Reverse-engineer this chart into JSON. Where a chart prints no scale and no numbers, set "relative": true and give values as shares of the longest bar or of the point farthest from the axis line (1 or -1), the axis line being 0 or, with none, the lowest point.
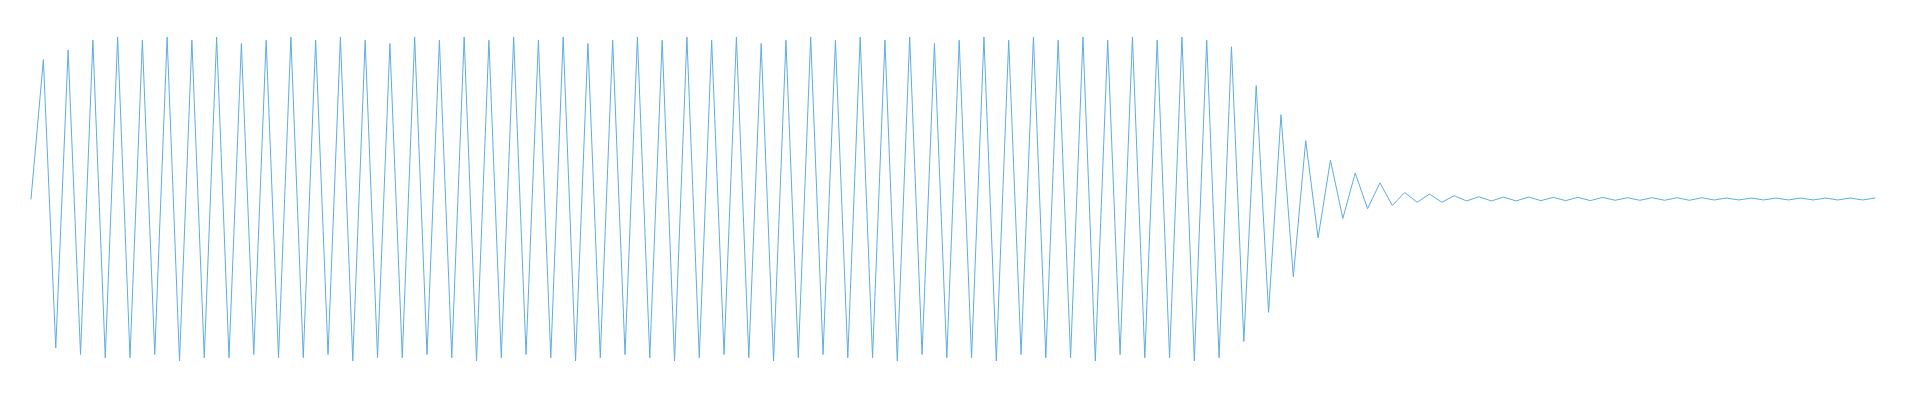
{
  "chart_data": {
    "type": "line",
    "relative": true,
    "categories": [
      null,
      null,
      null,
      null,
      null,
      null,
      null,
      null,
      null,
      null,
      null,
      null,
      null,
      null,
      null,
      null,
      null,
      null,
      null,
      null,
      null,
      null,
      null,
      null,
      null,
      null,
      null,
      null,
      null,
      null,
      null,
      null,
      null,
      null,
      null,
      null,
      null,
      null,
      null,
      null,
      null,
      null,
      null,
      null,
      null,
      null,
      null,
      null,
      null,
      null,
      null,
      null,
      null,
      null,
      null,
      null,
      null,
      null,
      null,
      null,
      null,
      null,
      null,
      null,
      null,
      null,
      null,
      null,
      null,
      null,
      null,
      null,
      null,
      null,
      null,
      null,
      null,
      null,
      null,
      null,
      null,
      null,
      null,
      null,
      null,
      null,
      null,
      null,
      null,
      null,
      null,
      null,
      null,
      null,
      null,
      null,
      null,
      null,
      null,
      null,
      null,
      null,
      null,
      null,
      null,
      null,
      null,
      null,
      null,
      null,
      null,
      null,
      null,
      null,
      null,
      null,
      null,
      null,
      null,
      null,
      null,
      null,
      null,
      null,
      null,
      null,
      null,
      null,
      null,
      null,
      null,
      null,
      null,
      null,
      null,
      null,
      null,
      null,
      null,
      null,
      null,
      null,
      null,
      null,
      null,
      null,
      null,
      null,
      null,
      null
    ],
    "series": [
      {
        "color": "#5dade2",
        "values": [
          0.5,
          0.93,
          0.04,
          0.96,
          0.02,
          0.99,
          0.01,
          1,
          0.01,
          0.99,
          0.02,
          1,
          0,
          0.99,
          0.01,
          1,
          0.01,
          0.98,
          0.02,
          0.99,
          0.01,
          1,
          0.01,
          0.99,
          0.02,
          1,
          0,
          0.99,
          0.01,
          0.98,
          0.01,
          1,
          0.02,
          0.99,
          0.01,
          1,
          0,
          0.99,
          0.01,
          1,
          0.02,
          0.99,
          0.01,
          1,
          0,
          0.98,
          0.01,
          0.99,
          0.02,
          1,
          0.01,
          0.99,
          0,
          1,
          0.01,
          0.99,
          0.02,
          1,
          0.01,
          0.98,
          0,
          0.99,
          0.01,
          1,
          0.02,
          0.99,
          0.01,
          1,
          0.01,
          0.99,
          0,
          1,
          0.02,
          0.98,
          0.01,
          0.99,
          0.01,
          1,
          0,
          0.99,
          0.02,
          1,
          0.01,
          0.99,
          0.01,
          1,
          0,
          0.99,
          0.02,
          1,
          0.01,
          0.99,
          0.01,
          1,
          0,
          0.99,
          0.01,
          0.97,
          0.06,
          0.85,
          0.15,
          0.76,
          0.26,
          0.68,
          0.38,
          0.62,
          0.44,
          0.58,
          0.47,
          0.55,
          0.48,
          0.52,
          0.49,
          0.515,
          0.49,
          0.51,
          0.494,
          0.507,
          0.494,
          0.506,
          0.494,
          0.506,
          0.495,
          0.505,
          0.495,
          0.505,
          0.495,
          0.505,
          0.496,
          0.504,
          0.496,
          0.504,
          0.496,
          0.504,
          0.496,
          0.504,
          0.497,
          0.503,
          0.497,
          0.503,
          0.497,
          0.503,
          0.497,
          0.503,
          0.497,
          0.503,
          0.497,
          0.503,
          0.497,
          0.503
        ]
      }
    ]
  }
}
